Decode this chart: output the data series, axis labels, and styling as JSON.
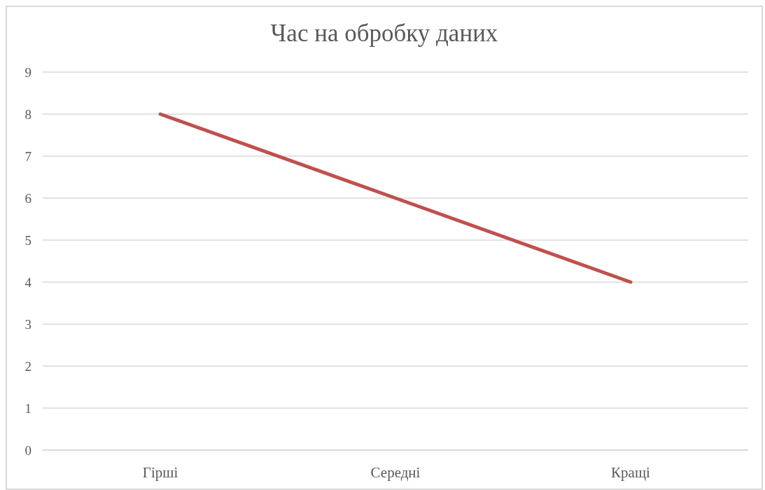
{
  "chart_data": {
    "type": "line",
    "title": "Час на обробку даних",
    "categories": [
      "Гірші",
      "Середні",
      "Кращі"
    ],
    "series": [
      {
        "color": "#c0504d",
        "values": [
          8,
          6,
          4
        ]
      }
    ],
    "ylim": [
      0,
      9
    ],
    "yticks": [
      0,
      1,
      2,
      3,
      4,
      5,
      6,
      7,
      8,
      9
    ],
    "grid": "y",
    "marker": "none"
  }
}
